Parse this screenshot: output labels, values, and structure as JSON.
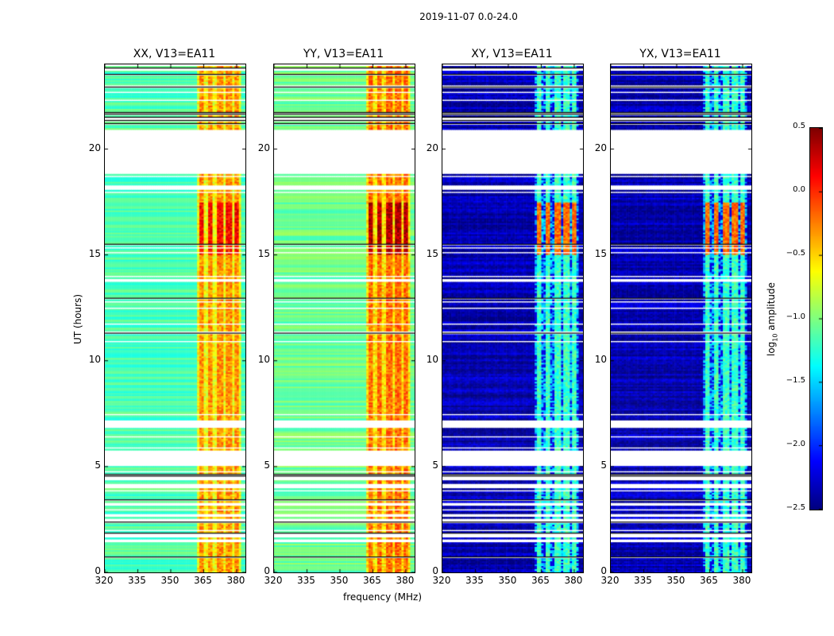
{
  "chart_data": {
    "type": "heatmap",
    "title": "2019-11-07 0.0-24.0",
    "xlabel": "frequency (MHz)",
    "ylabel": "UT (hours)",
    "xlim": [
      320,
      384
    ],
    "ylim": [
      0,
      24
    ],
    "xticks": [
      "320",
      "335",
      "350",
      "365",
      "380"
    ],
    "xtick_values": [
      320,
      335,
      350,
      365,
      380
    ],
    "yticks": [
      "0",
      "5",
      "10",
      "15",
      "20"
    ],
    "ytick_values": [
      0,
      5,
      10,
      15,
      20
    ],
    "colormap": "jet",
    "colorbar": {
      "label": "log10 amplitude",
      "label_main": "log",
      "label_sub": "10",
      "label_rest": " amplitude",
      "range": [
        -2.5,
        0.5
      ],
      "ticks": [
        "0.5",
        "0.0",
        "−0.5",
        "−1.0",
        "−1.5",
        "−2.0",
        "−2.5"
      ],
      "tick_values": [
        0.5,
        0.0,
        -0.5,
        -1.0,
        -1.5,
        -2.0,
        -2.5
      ]
    },
    "flagged_time_ranges_hours": [
      [
        5.0,
        5.8
      ],
      [
        6.8,
        7.2
      ],
      [
        18.1,
        18.3
      ],
      [
        18.8,
        20.9
      ]
    ],
    "rfi_band_mhz": [
      362,
      382
    ],
    "strong_rfi_time_hours": [
      15.0,
      17.5
    ],
    "panels": [
      {
        "title": "XX, V13=EA11",
        "base_level": -1.15,
        "band_level": -0.55,
        "peak_level": 0.1
      },
      {
        "title": "YY, V13=EA11",
        "base_level": -1.05,
        "band_level": -0.45,
        "peak_level": 0.35
      },
      {
        "title": "XY, V13=EA11",
        "base_level": -2.35,
        "band_level": -1.45,
        "peak_level": -0.2
      },
      {
        "title": "YX, V13=EA11",
        "base_level": -2.35,
        "band_level": -1.45,
        "peak_level": -0.2
      }
    ]
  }
}
